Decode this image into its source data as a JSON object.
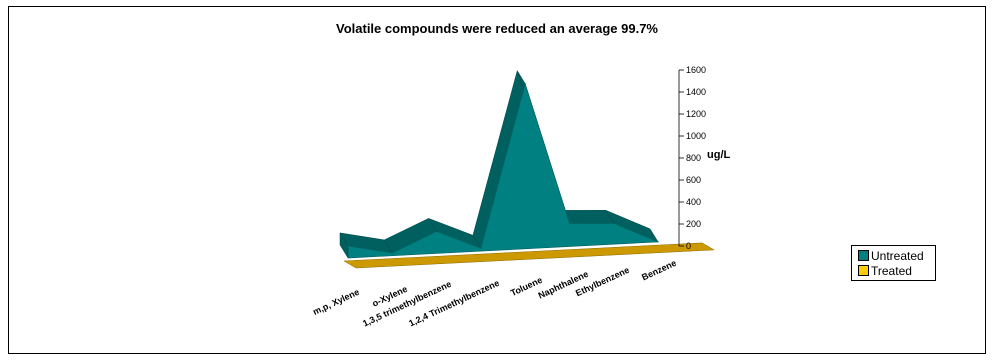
{
  "chart_data": {
    "type": "area",
    "title": "Volatile compounds were reduced an average 99.7%",
    "categories": [
      "m,p, Xylene",
      "o-Xylene",
      "1,3,5 trimethylbenzene",
      "1,2,4 Trimethylbenzene",
      "Toluene",
      "Naphthalene",
      "Ethylbenzene",
      "Benzene"
    ],
    "series": [
      {
        "name": "Untreated",
        "values": [
          110,
          25,
          200,
          25,
          1500,
          210,
          190,
          0
        ],
        "color": "#008080"
      },
      {
        "name": "Treated",
        "values": [
          0,
          0,
          0,
          0,
          0,
          0,
          0,
          0
        ],
        "color": "#CC9900"
      }
    ],
    "ylabel": "ug/L",
    "ylim": [
      0,
      1600
    ],
    "yticks": [
      0,
      200,
      400,
      600,
      800,
      1000,
      1200,
      1400,
      1600
    ],
    "grid": false,
    "legend": "right",
    "projection": "3d"
  }
}
